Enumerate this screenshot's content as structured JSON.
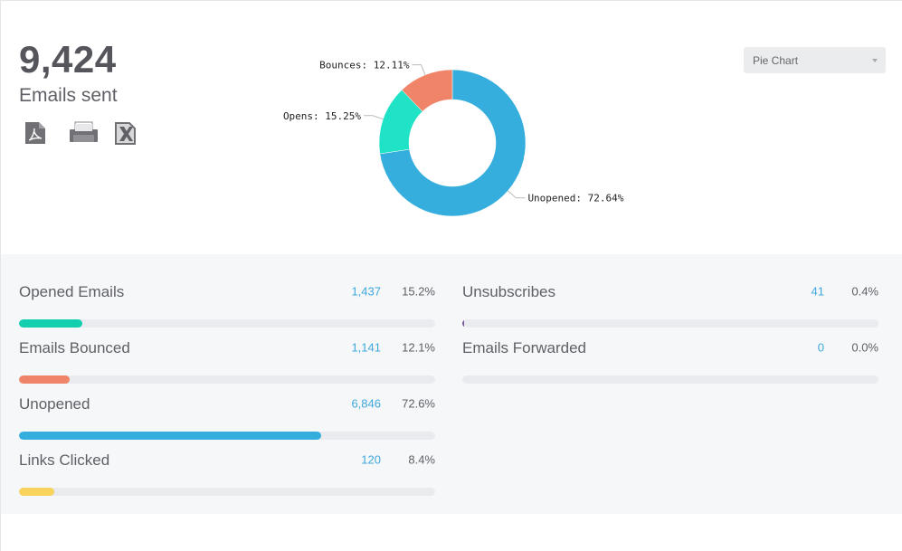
{
  "summary": {
    "total": "9,424",
    "label": "Emails sent"
  },
  "export_icons": [
    "pdf-icon",
    "print-icon",
    "excel-icon"
  ],
  "chart_type_select": {
    "value": "Pie Chart"
  },
  "chart_data": {
    "type": "pie",
    "donut": true,
    "slices": [
      {
        "label": "Unopened: 72.64%",
        "name": "Unopened",
        "value": 72.64,
        "color": "#35aedd"
      },
      {
        "label": "Opens: 15.25%",
        "name": "Opens",
        "value": 15.25,
        "color": "#20e2c6"
      },
      {
        "label": "Bounces: 12.11%",
        "name": "Bounces",
        "value": 12.11,
        "color": "#f08468"
      }
    ]
  },
  "stats": {
    "left": [
      {
        "label": "Opened Emails",
        "count": "1,437",
        "percent": "15.2%",
        "fill": 15.2,
        "color": "#13cfae"
      },
      {
        "label": "Emails Bounced",
        "count": "1,141",
        "percent": "12.1%",
        "fill": 12.1,
        "color": "#f08468"
      },
      {
        "label": "Unopened",
        "count": "6,846",
        "percent": "72.6%",
        "fill": 72.6,
        "color": "#35aedd"
      },
      {
        "label": "Links Clicked",
        "count": "120",
        "percent": "8.4%",
        "fill": 8.4,
        "color": "#f9d35c"
      }
    ],
    "right": [
      {
        "label": "Unsubscribes",
        "count": "41",
        "percent": "0.4%",
        "fill": 0.4,
        "color": "#7a5a9a"
      },
      {
        "label": "Emails Forwarded",
        "count": "0",
        "percent": "0.0%",
        "fill": 0,
        "color": "#35aedd"
      }
    ]
  }
}
